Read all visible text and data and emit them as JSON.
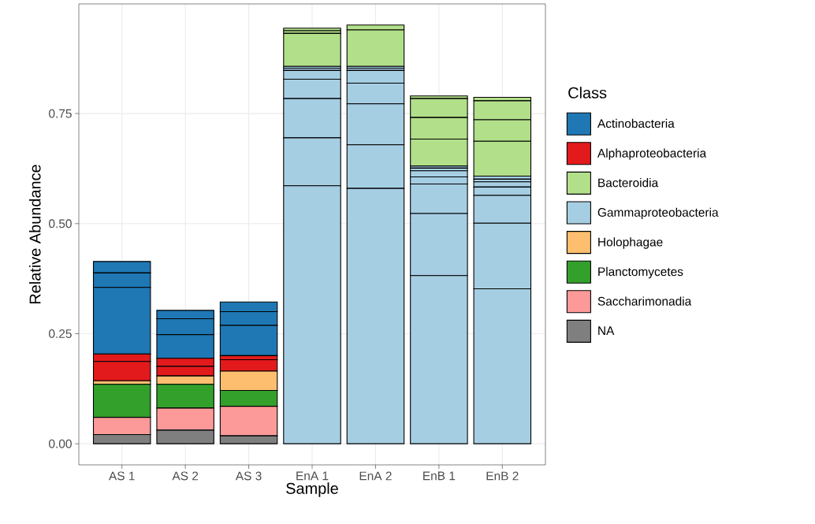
{
  "chart_data": {
    "type": "bar",
    "stacked": true,
    "xlabel": "Sample",
    "ylabel": "Relative Abundance",
    "legend_title": "Class",
    "legend": "right",
    "grid": true,
    "categories": [
      "AS 1",
      "AS 2",
      "AS 3",
      "EnA 1",
      "EnA 2",
      "EnB 1",
      "EnB 2"
    ],
    "ylim": [
      -0.048,
      0.999
    ],
    "yticks": [
      {
        "value": 0,
        "label": "0.00"
      },
      {
        "value": 0.25,
        "label": "0.25"
      },
      {
        "value": 0.5,
        "label": "0.50"
      },
      {
        "value": 0.75,
        "label": "0.75"
      }
    ],
    "series": [
      {
        "name": "NA",
        "color": "#7f7f7f",
        "values": [
          0.021,
          0.031,
          0.018,
          0,
          0,
          0,
          0
        ]
      },
      {
        "name": "Saccharimonadia",
        "color": "#fb9a99",
        "values": [
          0.039,
          0.05,
          0.067,
          0,
          0,
          0,
          0
        ]
      },
      {
        "name": "Planctomycetes",
        "color": "#33a02c",
        "values": [
          0.075,
          0.054,
          0.036,
          0,
          0,
          0,
          0
        ]
      },
      {
        "name": "Holophagae",
        "color": "#fdbf6f",
        "values": [
          0.008,
          0.019,
          0.044,
          0,
          0,
          0,
          0
        ]
      },
      {
        "name": "Gammaproteobacteria",
        "color": "#a6cee3",
        "values": [
          0,
          0,
          0,
          0.586,
          0.58,
          0.382,
          0.352
        ]
      },
      {
        "color": "#a6cee3",
        "values": [
          0,
          0,
          0,
          0.109,
          0.099,
          0.141,
          0.149
        ]
      },
      {
        "color": "#a6cee3",
        "values": [
          0,
          0,
          0,
          0.089,
          0.093,
          0.067,
          0.063
        ]
      },
      {
        "color": "#a6cee3",
        "values": [
          0,
          0,
          0,
          0.044,
          0.047,
          0.016,
          0.019
        ]
      },
      {
        "color": "#a6cee3",
        "values": [
          0,
          0,
          0,
          0.02,
          0.029,
          0.014,
          0.012
        ]
      },
      {
        "color": "#a6cee3",
        "values": [
          0,
          0,
          0,
          0.005,
          0.005,
          0.006,
          0.006
        ]
      },
      {
        "color": "#a6cee3",
        "values": [
          0,
          0,
          0,
          0.004,
          0.004,
          0.005,
          0.007
        ]
      },
      {
        "name": "Bacteroidia",
        "color": "#b2df8a",
        "values": [
          0,
          0,
          0,
          0.075,
          0.083,
          0.061,
          0.079
        ]
      },
      {
        "color": "#b2df8a",
        "values": [
          0,
          0,
          0,
          0.006,
          0.011,
          0.049,
          0.049
        ]
      },
      {
        "color": "#b2df8a",
        "values": [
          0,
          0,
          0,
          0.006,
          0,
          0.043,
          0.043
        ]
      },
      {
        "color": "#b2df8a",
        "values": [
          0,
          0,
          0,
          0,
          0,
          0.006,
          0.008
        ]
      },
      {
        "name": "Alphaproteobacteria",
        "color": "#e31a1c",
        "values": [
          0.044,
          0.022,
          0.026,
          0,
          0,
          0,
          0
        ]
      },
      {
        "color": "#e31a1c",
        "values": [
          0.017,
          0.018,
          0.009,
          0,
          0,
          0,
          0
        ]
      },
      {
        "name": "Actinobacteria",
        "color": "#1f78b4",
        "values": [
          0.151,
          0.054,
          0.069,
          0,
          0,
          0,
          0
        ]
      },
      {
        "color": "#1f78b4",
        "values": [
          0.033,
          0.036,
          0.031,
          0,
          0,
          0,
          0
        ]
      },
      {
        "color": "#1f78b4",
        "values": [
          0.026,
          0.019,
          0.022,
          0,
          0,
          0,
          0
        ]
      }
    ]
  }
}
